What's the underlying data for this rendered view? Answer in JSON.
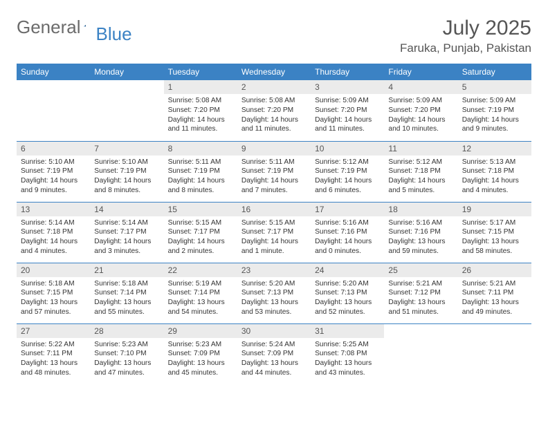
{
  "logo": {
    "text1": "General",
    "text2": "Blue"
  },
  "title": "July 2025",
  "location": "Faruka, Punjab, Pakistan",
  "colors": {
    "header_bg": "#3b82c4",
    "header_fg": "#ffffff",
    "daynum_bg": "#ebebeb",
    "text": "#333333",
    "rule": "#3b82c4"
  },
  "weekdays": [
    "Sunday",
    "Monday",
    "Tuesday",
    "Wednesday",
    "Thursday",
    "Friday",
    "Saturday"
  ],
  "weeks": [
    [
      {
        "n": "",
        "sr": "",
        "ss": "",
        "dl": ""
      },
      {
        "n": "",
        "sr": "",
        "ss": "",
        "dl": ""
      },
      {
        "n": "1",
        "sr": "5:08 AM",
        "ss": "7:20 PM",
        "dl": "14 hours and 11 minutes."
      },
      {
        "n": "2",
        "sr": "5:08 AM",
        "ss": "7:20 PM",
        "dl": "14 hours and 11 minutes."
      },
      {
        "n": "3",
        "sr": "5:09 AM",
        "ss": "7:20 PM",
        "dl": "14 hours and 11 minutes."
      },
      {
        "n": "4",
        "sr": "5:09 AM",
        "ss": "7:20 PM",
        "dl": "14 hours and 10 minutes."
      },
      {
        "n": "5",
        "sr": "5:09 AM",
        "ss": "7:19 PM",
        "dl": "14 hours and 9 minutes."
      }
    ],
    [
      {
        "n": "6",
        "sr": "5:10 AM",
        "ss": "7:19 PM",
        "dl": "14 hours and 9 minutes."
      },
      {
        "n": "7",
        "sr": "5:10 AM",
        "ss": "7:19 PM",
        "dl": "14 hours and 8 minutes."
      },
      {
        "n": "8",
        "sr": "5:11 AM",
        "ss": "7:19 PM",
        "dl": "14 hours and 8 minutes."
      },
      {
        "n": "9",
        "sr": "5:11 AM",
        "ss": "7:19 PM",
        "dl": "14 hours and 7 minutes."
      },
      {
        "n": "10",
        "sr": "5:12 AM",
        "ss": "7:19 PM",
        "dl": "14 hours and 6 minutes."
      },
      {
        "n": "11",
        "sr": "5:12 AM",
        "ss": "7:18 PM",
        "dl": "14 hours and 5 minutes."
      },
      {
        "n": "12",
        "sr": "5:13 AM",
        "ss": "7:18 PM",
        "dl": "14 hours and 4 minutes."
      }
    ],
    [
      {
        "n": "13",
        "sr": "5:14 AM",
        "ss": "7:18 PM",
        "dl": "14 hours and 4 minutes."
      },
      {
        "n": "14",
        "sr": "5:14 AM",
        "ss": "7:17 PM",
        "dl": "14 hours and 3 minutes."
      },
      {
        "n": "15",
        "sr": "5:15 AM",
        "ss": "7:17 PM",
        "dl": "14 hours and 2 minutes."
      },
      {
        "n": "16",
        "sr": "5:15 AM",
        "ss": "7:17 PM",
        "dl": "14 hours and 1 minute."
      },
      {
        "n": "17",
        "sr": "5:16 AM",
        "ss": "7:16 PM",
        "dl": "14 hours and 0 minutes."
      },
      {
        "n": "18",
        "sr": "5:16 AM",
        "ss": "7:16 PM",
        "dl": "13 hours and 59 minutes."
      },
      {
        "n": "19",
        "sr": "5:17 AM",
        "ss": "7:15 PM",
        "dl": "13 hours and 58 minutes."
      }
    ],
    [
      {
        "n": "20",
        "sr": "5:18 AM",
        "ss": "7:15 PM",
        "dl": "13 hours and 57 minutes."
      },
      {
        "n": "21",
        "sr": "5:18 AM",
        "ss": "7:14 PM",
        "dl": "13 hours and 55 minutes."
      },
      {
        "n": "22",
        "sr": "5:19 AM",
        "ss": "7:14 PM",
        "dl": "13 hours and 54 minutes."
      },
      {
        "n": "23",
        "sr": "5:20 AM",
        "ss": "7:13 PM",
        "dl": "13 hours and 53 minutes."
      },
      {
        "n": "24",
        "sr": "5:20 AM",
        "ss": "7:13 PM",
        "dl": "13 hours and 52 minutes."
      },
      {
        "n": "25",
        "sr": "5:21 AM",
        "ss": "7:12 PM",
        "dl": "13 hours and 51 minutes."
      },
      {
        "n": "26",
        "sr": "5:21 AM",
        "ss": "7:11 PM",
        "dl": "13 hours and 49 minutes."
      }
    ],
    [
      {
        "n": "27",
        "sr": "5:22 AM",
        "ss": "7:11 PM",
        "dl": "13 hours and 48 minutes."
      },
      {
        "n": "28",
        "sr": "5:23 AM",
        "ss": "7:10 PM",
        "dl": "13 hours and 47 minutes."
      },
      {
        "n": "29",
        "sr": "5:23 AM",
        "ss": "7:09 PM",
        "dl": "13 hours and 45 minutes."
      },
      {
        "n": "30",
        "sr": "5:24 AM",
        "ss": "7:09 PM",
        "dl": "13 hours and 44 minutes."
      },
      {
        "n": "31",
        "sr": "5:25 AM",
        "ss": "7:08 PM",
        "dl": "13 hours and 43 minutes."
      },
      {
        "n": "",
        "sr": "",
        "ss": "",
        "dl": ""
      },
      {
        "n": "",
        "sr": "",
        "ss": "",
        "dl": ""
      }
    ]
  ],
  "labels": {
    "sunrise": "Sunrise: ",
    "sunset": "Sunset: ",
    "daylight": "Daylight: "
  }
}
